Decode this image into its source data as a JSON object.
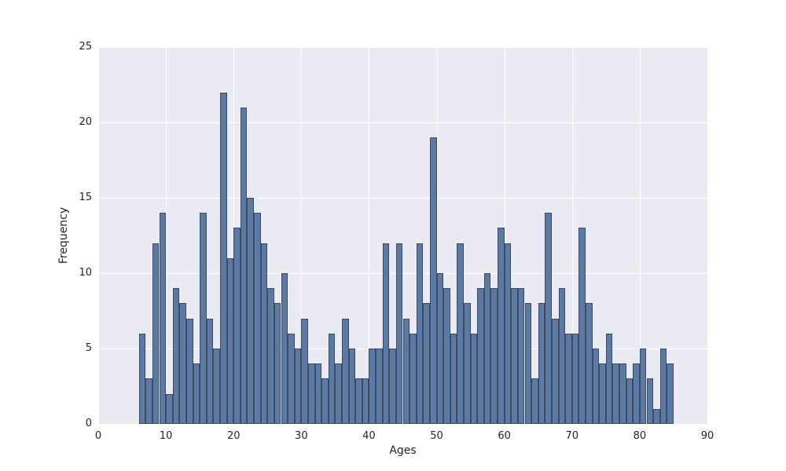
{
  "colors": {
    "figure_bg": "#ffffff",
    "plot_bg": "#eaeaf2",
    "grid": "#ffffff",
    "bar_fill": "#5b79a5",
    "bar_edge": "#3e4a5e",
    "text": "#262626"
  },
  "chart_data": {
    "type": "bar",
    "subtype": "histogram",
    "title": "",
    "xlabel": "Ages",
    "ylabel": "Frequency",
    "xlim": [
      0,
      90
    ],
    "ylim": [
      0,
      25
    ],
    "x_ticks": [
      0,
      10,
      20,
      30,
      40,
      50,
      60,
      70,
      80,
      90
    ],
    "y_ticks": [
      0,
      5,
      10,
      15,
      20,
      25
    ],
    "grid": "on",
    "legend": "none",
    "bin_width": 1,
    "first_bin_start": 6,
    "bin_starts": [
      6,
      7,
      8,
      9,
      10,
      11,
      12,
      13,
      14,
      15,
      16,
      17,
      18,
      19,
      20,
      21,
      22,
      23,
      24,
      25,
      26,
      27,
      28,
      29,
      30,
      31,
      32,
      33,
      34,
      35,
      36,
      37,
      38,
      39,
      40,
      41,
      42,
      43,
      44,
      45,
      46,
      47,
      48,
      49,
      50,
      51,
      52,
      53,
      54,
      55,
      56,
      57,
      58,
      59,
      60,
      61,
      62,
      63,
      64,
      65,
      66,
      67,
      68,
      69,
      70,
      71,
      72,
      73,
      74,
      75,
      76,
      77,
      78,
      79,
      80,
      81,
      82,
      83,
      84
    ],
    "frequencies": [
      6,
      3,
      12,
      14,
      2,
      9,
      8,
      7,
      4,
      14,
      7,
      5,
      22,
      11,
      13,
      21,
      15,
      14,
      12,
      9,
      8,
      10,
      6,
      5,
      7,
      4,
      4,
      3,
      6,
      4,
      7,
      5,
      3,
      3,
      5,
      5,
      12,
      5,
      12,
      7,
      6,
      12,
      8,
      19,
      10,
      9,
      6,
      12,
      8,
      6,
      9,
      10,
      9,
      13,
      12,
      9,
      9,
      8,
      3,
      8,
      14,
      7,
      9,
      6,
      6,
      13,
      8,
      5,
      4,
      6,
      4,
      4,
      3,
      4,
      5,
      3,
      1,
      5,
      4
    ]
  }
}
